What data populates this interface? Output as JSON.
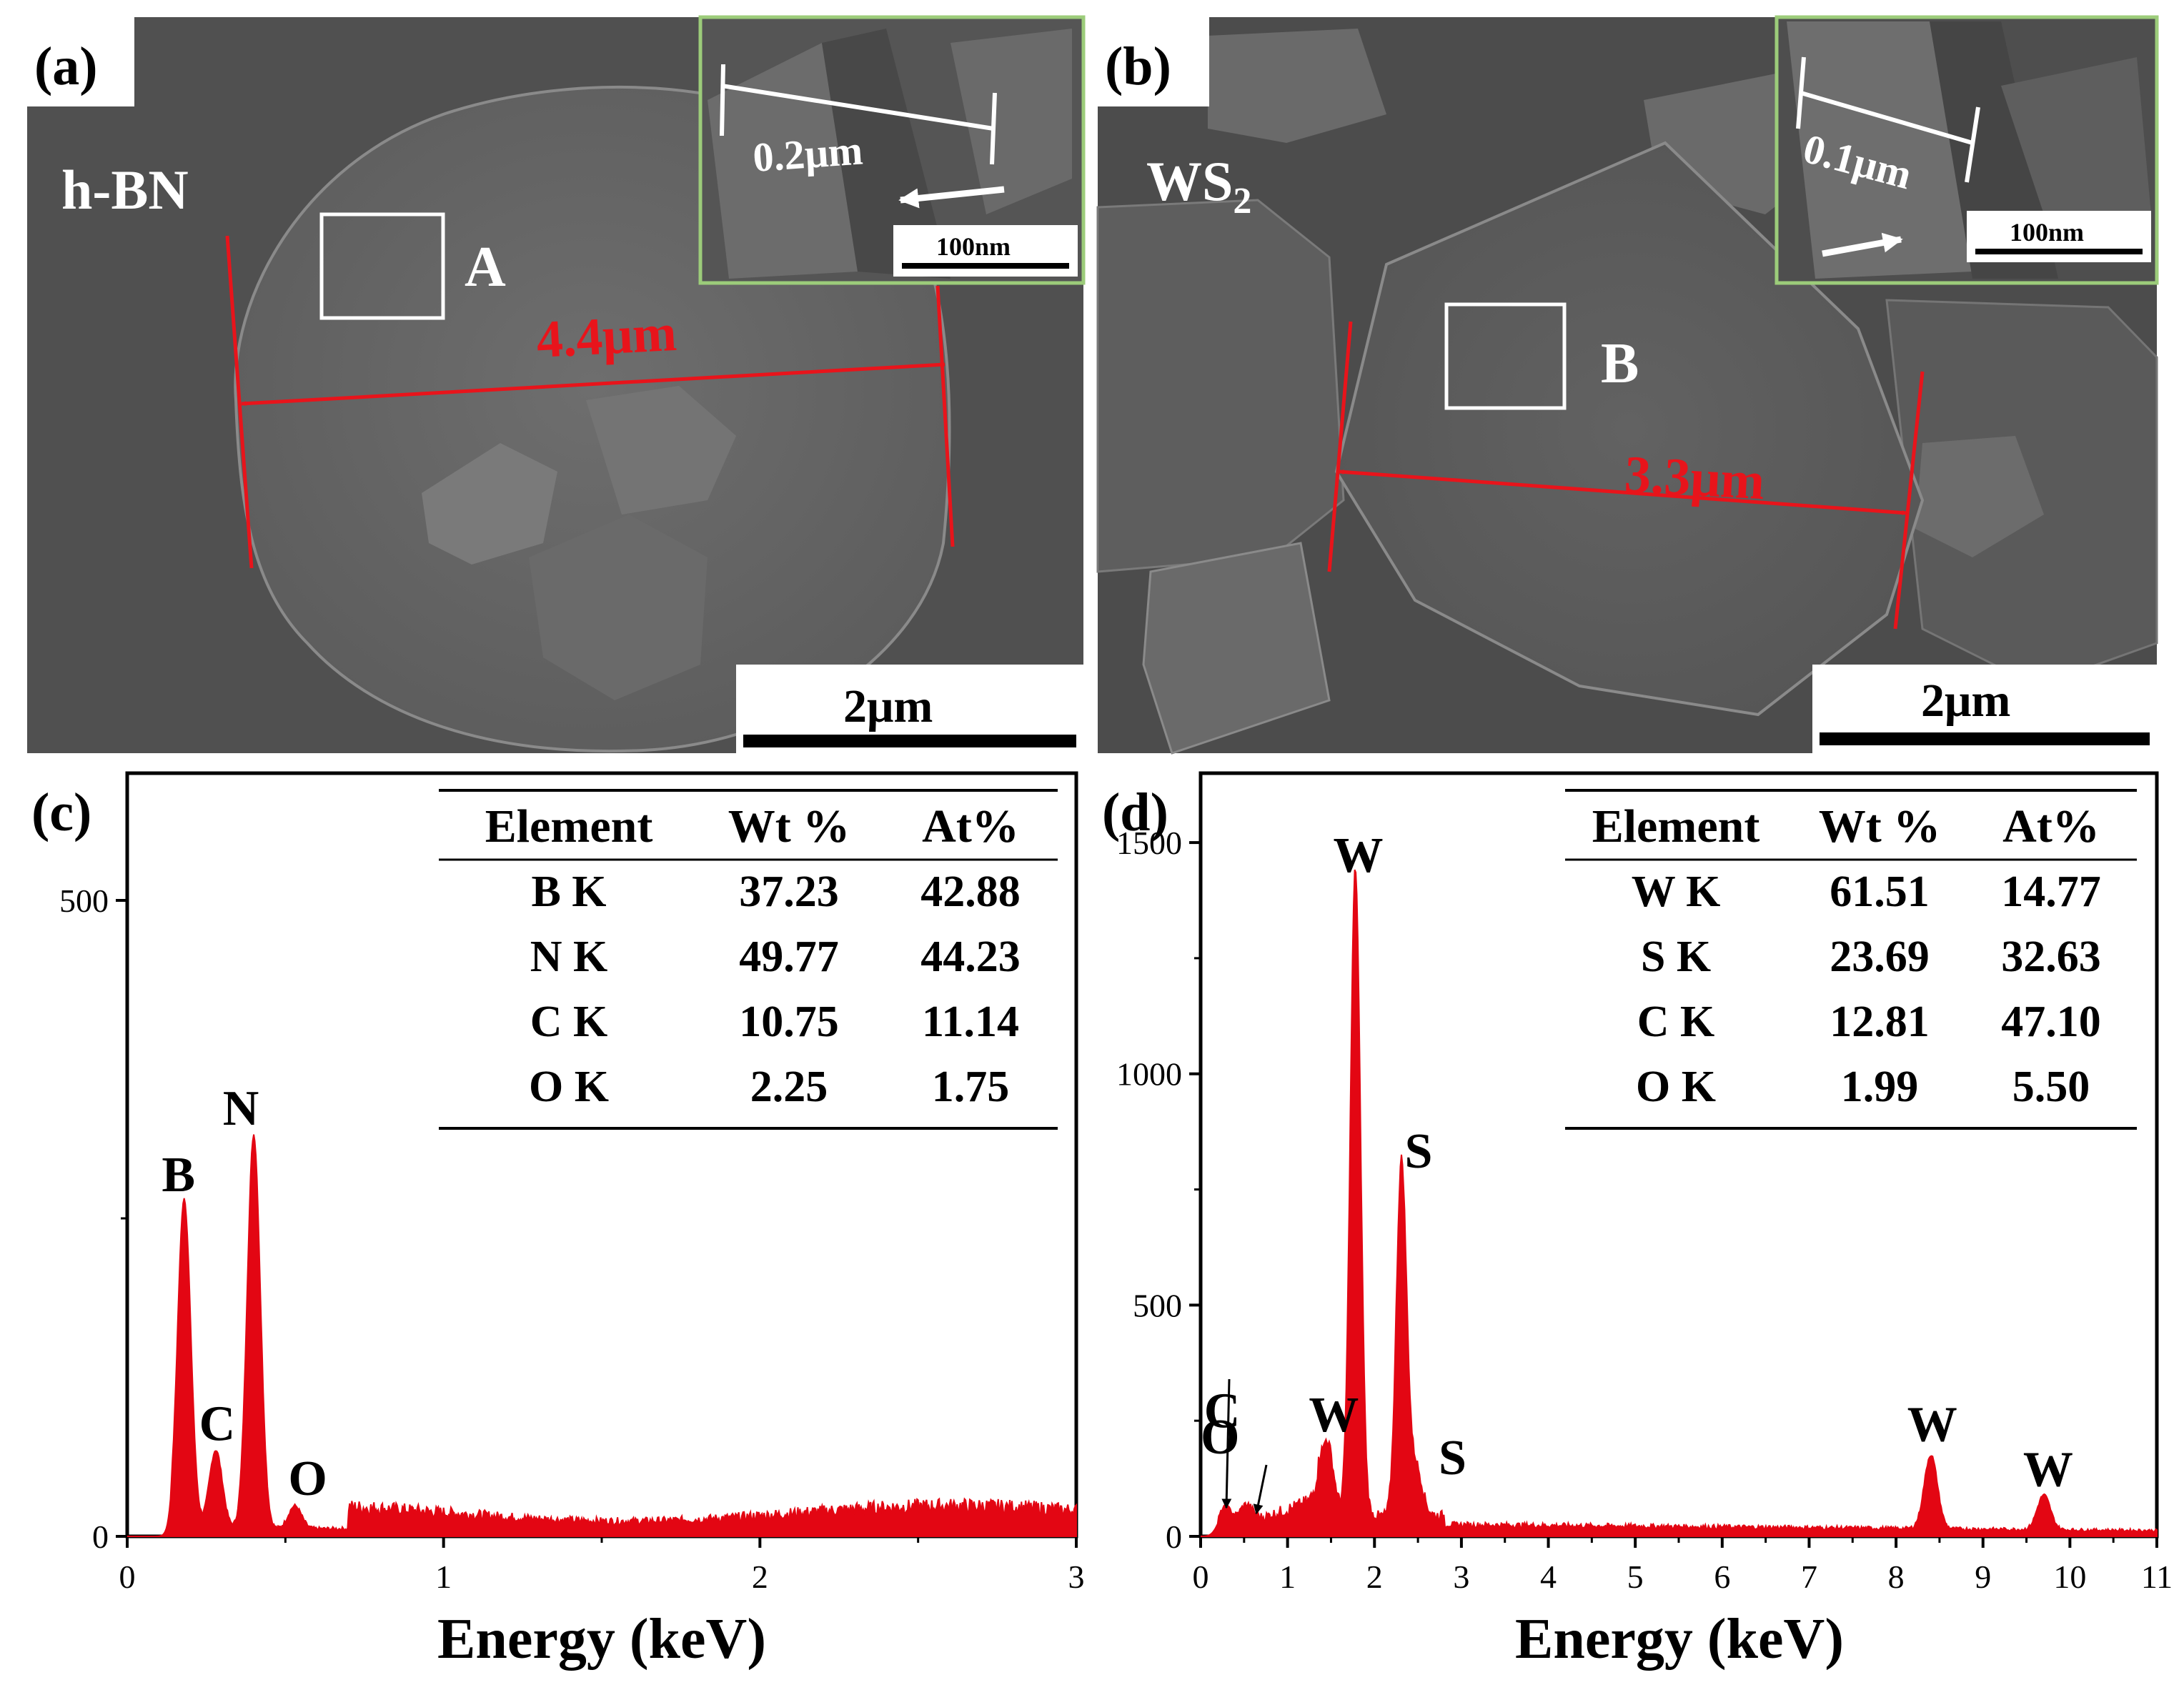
{
  "panel_a": {
    "label": "(a)",
    "material": "h-BN",
    "region": "A",
    "measurement": "4.4μm",
    "inset_measurement": "0.2μm",
    "inset_scale": "100nm",
    "scale_bar": "2μm"
  },
  "panel_b": {
    "label": "(b)",
    "material_main": "WS",
    "material_sub": "2",
    "region": "B",
    "measurement": "3.3μm",
    "inset_measurement": "0.1μm",
    "inset_scale": "100nm",
    "scale_bar": "2μm"
  },
  "panel_c": {
    "label": "(c)",
    "table": {
      "headers": [
        "Element",
        "Wt %",
        "At%"
      ],
      "rows": [
        [
          "B K",
          "37.23",
          "42.88"
        ],
        [
          "N K",
          "49.77",
          "44.23"
        ],
        [
          "C K",
          "10.75",
          "11.14"
        ],
        [
          "O K",
          "2.25",
          "1.75"
        ]
      ]
    }
  },
  "panel_d": {
    "label": "(d)",
    "table": {
      "headers": [
        "Element",
        "Wt %",
        "At%"
      ],
      "rows": [
        [
          "W K",
          "61.51",
          "14.77"
        ],
        [
          "S K",
          "23.69",
          "32.63"
        ],
        [
          "C K",
          "12.81",
          "47.10"
        ],
        [
          "O K",
          "1.99",
          "5.50"
        ]
      ]
    }
  },
  "colors": {
    "spectrum": "#e30613",
    "annotation_red": "#e8141b",
    "sem_bg": "#5a5a5a",
    "inset_border": "#9ccc7a"
  },
  "chart_data": [
    {
      "type": "area",
      "xlabel": "Energy (keV)",
      "ylabel": "",
      "xlim": [
        0,
        3
      ],
      "ylim": [
        0,
        600
      ],
      "xticks": [
        "0",
        "1",
        "2",
        "3"
      ],
      "yticks": [
        "0",
        "500"
      ],
      "peaks": [
        {
          "label": "B",
          "x": 0.18,
          "y": 260
        },
        {
          "label": "C",
          "x": 0.28,
          "y": 62
        },
        {
          "label": "N",
          "x": 0.4,
          "y": 310
        },
        {
          "label": "O",
          "x": 0.53,
          "y": 18
        }
      ]
    },
    {
      "type": "area",
      "xlabel": "Energy (keV)",
      "ylabel": "",
      "xlim": [
        0,
        11
      ],
      "ylim": [
        0,
        1650
      ],
      "xticks": [
        "0",
        "1",
        "2",
        "3",
        "4",
        "5",
        "6",
        "7",
        "8",
        "9",
        "10",
        "11"
      ],
      "yticks": [
        "0",
        "500",
        "1000",
        "1500"
      ],
      "peaks": [
        {
          "label": "C",
          "x": 0.28,
          "y": 50
        },
        {
          "label": "O",
          "x": 0.52,
          "y": 40
        },
        {
          "label": "W",
          "x": 1.45,
          "y": 165
        },
        {
          "label": "W",
          "x": 1.78,
          "y": 1400
        },
        {
          "label": "S",
          "x": 2.31,
          "y": 760
        },
        {
          "label": "S",
          "x": 2.47,
          "y": 110
        },
        {
          "label": "W",
          "x": 8.4,
          "y": 160
        },
        {
          "label": "W",
          "x": 9.7,
          "y": 75
        }
      ]
    }
  ]
}
